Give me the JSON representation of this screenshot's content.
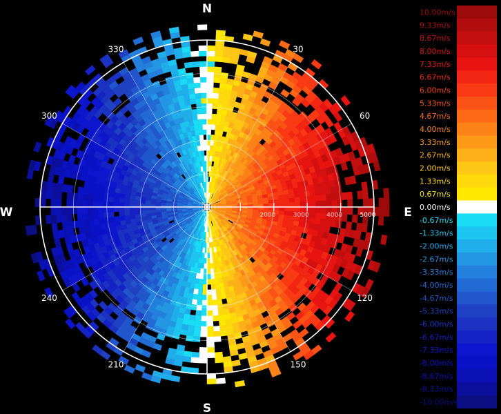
{
  "chart_data": {
    "type": "heatmap",
    "title": "",
    "compass": {
      "north": "N",
      "east": "E",
      "south": "S",
      "west": "W",
      "bearings": [
        "30",
        "60",
        "120",
        "150",
        "210",
        "240",
        "300",
        "330"
      ]
    },
    "range_labels": [
      "2000",
      "3000",
      "4000",
      "5000"
    ],
    "range_max": 5000,
    "legend": {
      "labels": [
        "10.00m/s",
        "9.33m/s",
        "8.67m/s",
        "8.00m/s",
        "7.33m/s",
        "6.67m/s",
        "6.00m/s",
        "5.33m/s",
        "4.67m/s",
        "4.00m/s",
        "3.33m/s",
        "2.67m/s",
        "2.00m/s",
        "1.33m/s",
        "0.67m/s",
        "0.00m/s",
        "-0.67m/s",
        "-1.33m/s",
        "-2.00m/s",
        "-2.67m/s",
        "-3.33m/s",
        "-4.00m/s",
        "-4.67m/s",
        "-5.33m/s",
        "-6.00m/s",
        "-6.67m/s",
        "-7.33m/s",
        "-8.00m/s",
        "-8.67m/s",
        "-9.33m/s",
        "-10.00m/s"
      ],
      "colors": [
        "#9c0a0a",
        "#b10d0d",
        "#c20e0e",
        "#d61010",
        "#e81412",
        "#f22612",
        "#fa3a14",
        "#fb5216",
        "#fc6a18",
        "#fd8218",
        "#fd9a18",
        "#fdb018",
        "#fec615",
        "#fed90c",
        "#fee800",
        "#ffffff",
        "#19dcf5",
        "#1cc5f0",
        "#20aeeb",
        "#2396e4",
        "#2380dc",
        "#226bd4",
        "#2156cc",
        "#1f42c4",
        "#1b32c2",
        "#1422c6",
        "#0d16cc",
        "#0a12c6",
        "#0a10b4",
        "#0b0f9c",
        "#0c0e84"
      ]
    },
    "velocity_range": [
      -10,
      10
    ],
    "velocity_unit": "m/s"
  }
}
